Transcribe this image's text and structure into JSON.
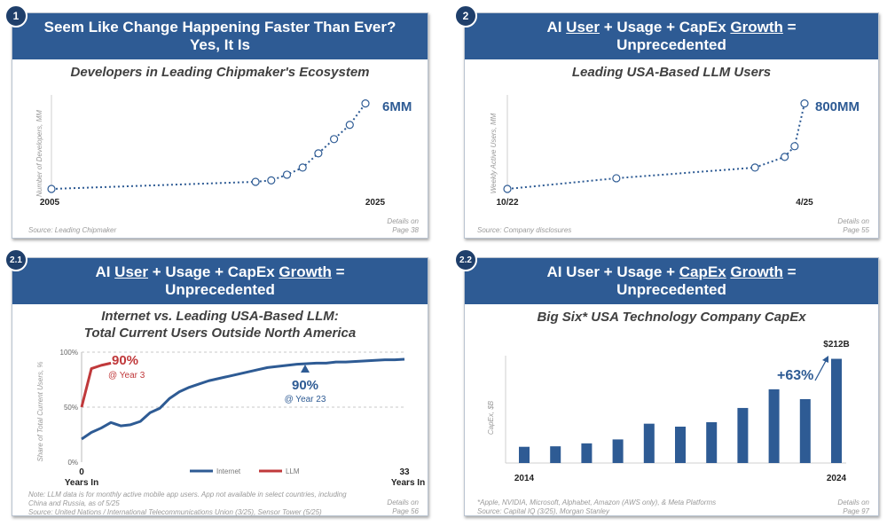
{
  "panels": [
    {
      "badge": "1",
      "title_line1": "Seem Like Change Happening Faster Than Ever?",
      "title_line2": "Yes, It Is",
      "subtitle": "Developers in Leading Chipmaker's Ecosystem",
      "source": "Source: Leading Chipmaker",
      "details": "Details on",
      "page": "Page 38"
    },
    {
      "badge": "2",
      "title_pre": "AI ",
      "title_user": "User",
      "title_mid": " + Usage + CapEx ",
      "title_growth": "Growth",
      "title_post": " =",
      "title_line2": "Unprecedented",
      "subtitle": "Leading USA-Based LLM Users",
      "source": "Source: Company disclosures",
      "details": "Details on",
      "page": "Page 55"
    },
    {
      "badge": "2.1",
      "title_pre": "AI ",
      "title_user": "User",
      "title_mid": " + Usage + CapEx ",
      "title_growth": "Growth",
      "title_post": " =",
      "title_line2": "Unprecedented",
      "subtitle_line1": "Internet vs. Leading USA-Based LLM:",
      "subtitle_line2": "Total Current Users Outside North America",
      "note1": "Note: LLM data is for monthly active mobile app users. App not available in select countries, including",
      "note2": "China and Russia, as of 5/25",
      "source": "Source: United Nations / International Telecommunications Union (3/25), Sensor Tower (5/25)",
      "details": "Details on",
      "page": "Page 56"
    },
    {
      "badge": "2.2",
      "title_pre": "AI User + Usage + ",
      "title_capex": "CapEx",
      "title_sp": " ",
      "title_growth": "Growth",
      "title_post": " =",
      "title_line2": "Unprecedented",
      "subtitle": "Big Six* USA Technology Company CapEx",
      "note": "*Apple, NVIDIA, Microsoft, Alphabet, Amazon (AWS only), & Meta Platforms",
      "source": "Source: Capital IQ (3/25), Morgan Stanley",
      "details": "Details on",
      "page": "Page 97"
    }
  ],
  "chart_data": [
    {
      "type": "line",
      "title": "Developers in Leading Chipmaker's Ecosystem",
      "ylabel": "Number of Developers, MM",
      "x": [
        2005,
        2018,
        2019,
        2020,
        2021,
        2022,
        2023,
        2024,
        2025
      ],
      "values": [
        0,
        0.5,
        0.6,
        1.0,
        1.5,
        2.5,
        3.5,
        4.5,
        6
      ],
      "x_start_label": "2005",
      "x_end_label": "2025",
      "end_label": "6MM",
      "ylim": [
        0,
        6.6
      ]
    },
    {
      "type": "line",
      "title": "Leading USA-Based LLM Users",
      "ylabel": "Weekly Active Users, MM",
      "x": [
        "10/22",
        "9/23",
        "11/24",
        "2/25",
        "3/25",
        "4/25"
      ],
      "x_pos": [
        0,
        11,
        25,
        28,
        29,
        30
      ],
      "values": [
        0,
        100,
        200,
        300,
        400,
        800
      ],
      "x_start_label": "10/22",
      "x_end_label": "4/25",
      "end_label": "800MM",
      "ylim": [
        0,
        880
      ]
    },
    {
      "type": "line",
      "title": "Internet vs. Leading USA-Based LLM: Total Current Users Outside North America",
      "ylabel": "Share of Total Current Users, %",
      "yticks": [
        "0%",
        "50%",
        "100%"
      ],
      "x_start_label": "0",
      "x_start_sub": "Years In",
      "x_end_label": "33",
      "x_end_sub": "Years In",
      "xlim": [
        0,
        33
      ],
      "ylim": [
        0,
        100
      ],
      "series": [
        {
          "name": "Internet",
          "color": "#2e5b94",
          "x": [
            0,
            1,
            2,
            3,
            4,
            5,
            6,
            7,
            8,
            9,
            10,
            11,
            12,
            13,
            14,
            15,
            16,
            17,
            18,
            19,
            20,
            21,
            22,
            23,
            24,
            25,
            26,
            27,
            28,
            29,
            30,
            31,
            32,
            33
          ],
          "values": [
            21,
            27,
            31,
            36,
            33,
            34,
            37,
            45,
            49,
            58,
            64,
            68,
            71,
            74,
            76,
            78,
            80,
            82,
            84,
            86,
            87,
            88,
            89,
            89.5,
            90,
            90,
            91,
            91,
            91.5,
            92,
            92.5,
            93,
            93,
            93.5
          ]
        },
        {
          "name": "LLM",
          "color": "#c0393b",
          "x": [
            0,
            1,
            2,
            3
          ],
          "values": [
            50,
            85,
            88,
            90
          ]
        }
      ],
      "annotations": [
        {
          "value": "90%",
          "sub": "@ Year 3"
        },
        {
          "value": "90%",
          "sub": "@ Year 23"
        }
      ]
    },
    {
      "type": "bar",
      "title": "Big Six* USA Technology Company CapEx",
      "ylabel": "CapEx, $B",
      "categories": [
        "2014",
        "2015",
        "2016",
        "2017",
        "2018",
        "2019",
        "2020",
        "2021",
        "2022",
        "2023",
        "2024"
      ],
      "values": [
        33,
        34,
        40,
        48,
        80,
        74,
        83,
        112,
        150,
        130,
        212
      ],
      "x_start_label": "2014",
      "x_end_label": "2024",
      "top_label": "$212B",
      "growth_label": "+63%",
      "ylim": [
        0,
        240
      ],
      "color": "#2e5b94"
    }
  ]
}
